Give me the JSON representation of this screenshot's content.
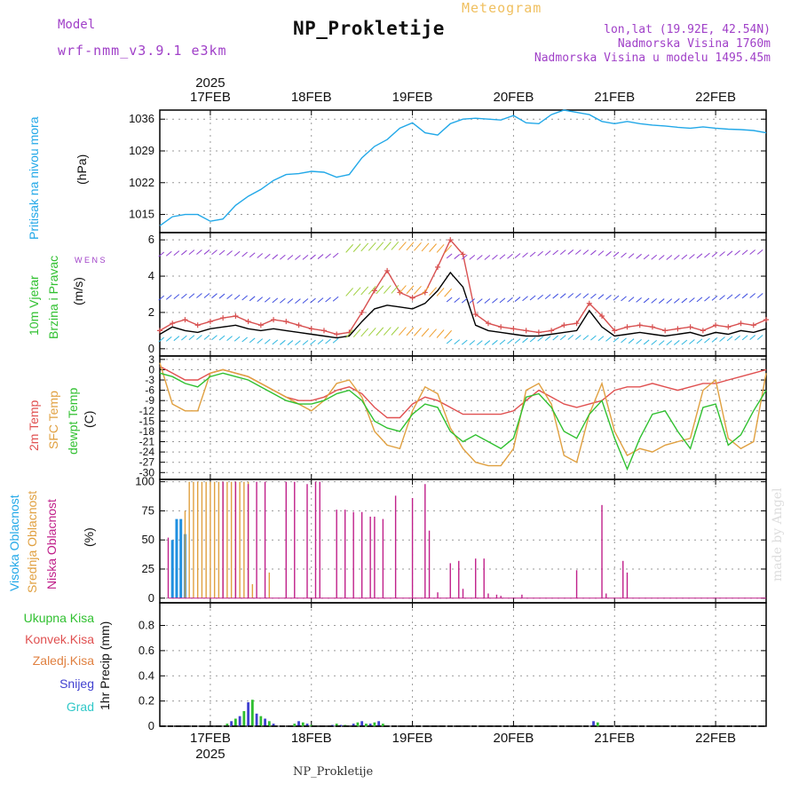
{
  "header": {
    "title": "NP_Prokletije",
    "subtitle": "Meteogram",
    "model_label": "Model",
    "model_value": "wrf-nmm_v3.9.1  e3km",
    "location_line1": "lon,lat (19.92E, 42.54N)",
    "location_line2": "Nadmorska Visina 1760m",
    "location_line3": "Nadmorska Visina u modelu 1495.45m",
    "footer": "NP_Prokletije",
    "credit": "made by Angel"
  },
  "colors": {
    "pressure": "#22a8e8",
    "wind_obs": "#d85050",
    "wind_black": "#000000",
    "temp_2m": "#e05050",
    "temp_sfc": "#e0a040",
    "temp_dew": "#30c030",
    "cloud_high": "#2090e0",
    "cloud_mid": "#e0a040",
    "cloud_low": "#c0208a",
    "precip_total": "#30c030",
    "precip_snow": "#4040d0"
  },
  "chart_data": {
    "type": "line",
    "time_axis": {
      "year": "2025",
      "days": [
        "17FEB",
        "18FEB",
        "19FEB",
        "20FEB",
        "21FEB",
        "22FEB"
      ],
      "hours_start": 0,
      "hours_end": 144
    },
    "panels": [
      {
        "id": "pressure",
        "labels": [
          "Pritisak na nivou mora"
        ],
        "unit": "(hPa)",
        "yticks": [
          "1015",
          "1022",
          "1029",
          "1036"
        ],
        "ylim": [
          1011,
          1038
        ],
        "series": [
          {
            "name": "Pressure",
            "x": [
              0,
              3,
              6,
              9,
              12,
              15,
              18,
              21,
              24,
              27,
              30,
              33,
              36,
              39,
              42,
              45,
              48,
              51,
              54,
              57,
              60,
              63,
              66,
              69,
              72,
              75,
              78,
              81,
              84,
              87,
              90,
              93,
              96,
              99,
              102,
              105,
              108,
              111,
              114,
              117,
              120,
              123,
              126,
              129,
              132,
              135,
              138,
              141,
              144
            ],
            "y": [
              1012.5,
              1014.5,
              1015,
              1015,
              1013.5,
              1014,
              1017,
              1019,
              1020.5,
              1022.5,
              1023.8,
              1024,
              1024.5,
              1024.3,
              1023.2,
              1023.8,
              1027.5,
              1030,
              1031.5,
              1034,
              1035.2,
              1033,
              1032.5,
              1035,
              1036,
              1036.2,
              1036,
              1035.8,
              1036.8,
              1035.2,
              1035,
              1037,
              1038,
              1037.5,
              1037,
              1035.5,
              1035,
              1035.5,
              1035,
              1034.7,
              1034.5,
              1034.2,
              1034,
              1034.3,
              1034,
              1033.8,
              1033.7,
              1033.5,
              1033
            ]
          }
        ]
      },
      {
        "id": "wind",
        "labels": [
          "10m Vjetar",
          "Brzina i Pravac"
        ],
        "unit": "(m/s)",
        "compass": "W E N S",
        "yticks": [
          "0",
          "2",
          "4",
          "6"
        ],
        "ylim": [
          -0.4,
          6.4
        ],
        "series": [
          {
            "name": "Speed (red, markers)",
            "x": [
              0,
              3,
              6,
              9,
              12,
              15,
              18,
              21,
              24,
              27,
              30,
              33,
              36,
              39,
              42,
              45,
              48,
              51,
              54,
              57,
              60,
              63,
              66,
              69,
              72,
              75,
              78,
              81,
              84,
              87,
              90,
              93,
              96,
              99,
              102,
              105,
              108,
              111,
              114,
              117,
              120,
              123,
              126,
              129,
              132,
              135,
              138,
              141,
              144
            ],
            "y": [
              1.0,
              1.4,
              1.6,
              1.3,
              1.5,
              1.7,
              1.8,
              1.5,
              1.3,
              1.6,
              1.5,
              1.3,
              1.1,
              1.0,
              0.8,
              0.9,
              2.0,
              3.2,
              4.3,
              3.1,
              2.8,
              3.1,
              4.5,
              6.0,
              5.2,
              1.9,
              1.4,
              1.2,
              1.1,
              1.0,
              0.9,
              1.0,
              1.3,
              1.4,
              2.5,
              1.8,
              1.0,
              1.2,
              1.3,
              1.2,
              1.0,
              1.1,
              1.2,
              1.0,
              1.3,
              1.2,
              1.4,
              1.3,
              1.6
            ]
          },
          {
            "name": "Speed (black)",
            "x": [
              0,
              3,
              6,
              9,
              12,
              15,
              18,
              21,
              24,
              27,
              30,
              33,
              36,
              39,
              42,
              45,
              48,
              51,
              54,
              57,
              60,
              63,
              66,
              69,
              72,
              75,
              78,
              81,
              84,
              87,
              90,
              93,
              96,
              99,
              102,
              105,
              108,
              111,
              114,
              117,
              120,
              123,
              126,
              129,
              132,
              135,
              138,
              141,
              144
            ],
            "y": [
              0.8,
              1.2,
              1.0,
              0.9,
              1.1,
              1.2,
              1.3,
              1.1,
              1.0,
              1.1,
              1.0,
              0.9,
              0.8,
              0.7,
              0.6,
              0.7,
              1.5,
              2.2,
              2.4,
              2.3,
              2.2,
              2.5,
              3.2,
              4.2,
              3.4,
              1.3,
              1.0,
              0.9,
              0.8,
              0.7,
              0.7,
              0.8,
              0.9,
              1.0,
              2.1,
              1.2,
              0.7,
              0.8,
              0.9,
              0.8,
              0.7,
              0.8,
              0.9,
              0.7,
              0.9,
              0.8,
              1.0,
              0.9,
              1.1
            ]
          }
        ]
      },
      {
        "id": "temperature",
        "labels": [
          "2m Temp",
          "SFC Temp",
          "dewpt Temp"
        ],
        "unit": "(C)",
        "yticks": [
          "3",
          "0",
          "-3",
          "-6",
          "-9",
          "-12",
          "-15",
          "-18",
          "-21",
          "-24",
          "-27",
          "-30"
        ],
        "ylim": [
          -32,
          4
        ],
        "series": [
          {
            "name": "2m Temp",
            "x": [
              0,
              3,
              6,
              9,
              12,
              15,
              18,
              21,
              24,
              27,
              30,
              33,
              36,
              39,
              42,
              45,
              48,
              51,
              54,
              57,
              60,
              63,
              66,
              69,
              72,
              75,
              78,
              81,
              84,
              87,
              90,
              93,
              96,
              99,
              102,
              105,
              108,
              111,
              114,
              117,
              120,
              123,
              126,
              129,
              132,
              135,
              138,
              141,
              144
            ],
            "y": [
              1,
              -1,
              -3,
              -3,
              -1,
              0,
              -1,
              -2,
              -4,
              -6,
              -8,
              -9,
              -9,
              -8,
              -6,
              -5,
              -7,
              -11,
              -14,
              -14,
              -10,
              -8,
              -9,
              -11,
              -13,
              -13,
              -13,
              -13,
              -12,
              -9,
              -6,
              -8,
              -10,
              -11,
              -10,
              -9,
              -6,
              -5,
              -5,
              -4,
              -5,
              -6,
              -5,
              -4,
              -4,
              -3,
              -2,
              -1,
              0
            ]
          },
          {
            "name": "SFC Temp",
            "x": [
              0,
              3,
              6,
              9,
              12,
              15,
              18,
              21,
              24,
              27,
              30,
              33,
              36,
              39,
              42,
              45,
              48,
              51,
              54,
              57,
              60,
              63,
              66,
              69,
              72,
              75,
              78,
              81,
              84,
              87,
              90,
              93,
              96,
              99,
              102,
              105,
              108,
              111,
              114,
              117,
              120,
              123,
              126,
              129,
              132,
              135,
              138,
              141,
              144
            ],
            "y": [
              2,
              -10,
              -12,
              -12,
              -1,
              0,
              -1,
              -2,
              -4,
              -6,
              -8,
              -10,
              -12,
              -9,
              -4,
              -3,
              -8,
              -18,
              -22,
              -23,
              -12,
              -5,
              -7,
              -17,
              -23,
              -27,
              -28,
              -28,
              -23,
              -6,
              -4,
              -10,
              -25,
              -27,
              -13,
              -4,
              -18,
              -25,
              -23,
              -24,
              -22,
              -21,
              -20,
              -6,
              -3,
              -20,
              -23,
              -21,
              -1
            ]
          },
          {
            "name": "dewpt Temp",
            "x": [
              0,
              3,
              6,
              9,
              12,
              15,
              18,
              21,
              24,
              27,
              30,
              33,
              36,
              39,
              42,
              45,
              48,
              51,
              54,
              57,
              60,
              63,
              66,
              69,
              72,
              75,
              78,
              81,
              84,
              87,
              90,
              93,
              96,
              99,
              102,
              105,
              108,
              111,
              114,
              117,
              120,
              123,
              126,
              129,
              132,
              135,
              138,
              141,
              144
            ],
            "y": [
              -1,
              -2,
              -4,
              -5,
              -2,
              -1,
              -2,
              -3,
              -5,
              -7,
              -9,
              -10,
              -10,
              -9,
              -7,
              -6,
              -9,
              -15,
              -17,
              -18,
              -13,
              -10,
              -11,
              -18,
              -21,
              -19,
              -21,
              -23,
              -20,
              -8,
              -7,
              -11,
              -18,
              -20,
              -13,
              -9,
              -20,
              -29,
              -20,
              -13,
              -12,
              -18,
              -23,
              -11,
              -10,
              -22,
              -19,
              -12,
              -6
            ]
          }
        ]
      },
      {
        "id": "clouds",
        "labels": [
          "Visoka Oblacnost",
          "Srednja Oblacnost",
          "Niska Oblacnost"
        ],
        "unit": "(%)",
        "yticks": [
          "0",
          "25",
          "50",
          "75",
          "100"
        ],
        "ylim": [
          -4,
          102
        ],
        "series": [
          {
            "name": "Visoka (high)",
            "x": [
              3,
              4,
              5,
              6
            ],
            "y": [
              50,
              68,
              68,
              55
            ]
          },
          {
            "name": "Srednja (mid)",
            "x": [
              6,
              7,
              8,
              9,
              10,
              11,
              12,
              13,
              14,
              15,
              16,
              17,
              18,
              19,
              20,
              21,
              22,
              26
            ],
            "y": [
              75,
              100,
              100,
              100,
              100,
              100,
              100,
              100,
              100,
              100,
              100,
              100,
              100,
              100,
              100,
              100,
              12,
              22
            ]
          },
          {
            "name": "Niska (low)",
            "x": [
              2,
              15,
              18,
              21,
              23,
              25,
              30,
              32,
              35,
              37,
              38,
              42,
              44,
              46,
              48,
              50,
              51,
              53,
              56,
              60,
              63,
              64,
              66,
              69,
              71,
              72,
              75,
              77,
              78,
              80,
              81,
              86,
              99,
              105,
              106,
              110,
              111
            ],
            "y": [
              52,
              100,
              100,
              98,
              100,
              100,
              100,
              100,
              98,
              100,
              100,
              76,
              76,
              74,
              74,
              70,
              70,
              68,
              88,
              86,
              98,
              58,
              5,
              30,
              32,
              8,
              34,
              34,
              4,
              3,
              2,
              3,
              24,
              80,
              4,
              32,
              22
            ]
          }
        ]
      },
      {
        "id": "precip",
        "labels": [
          "Ukupna Kisa",
          "Konvek.Kisa",
          "Zaledj.Kisa",
          "Snijeg",
          "Grad"
        ],
        "label_colors": [
          "#30c030",
          "#e05050",
          "#e08040",
          "#4040d0",
          "#30c8c8"
        ],
        "unit": "1hr Precip (mm)",
        "yticks": [
          "0",
          "0.2",
          "0.4",
          "0.6",
          "0.8"
        ],
        "ylim": [
          0,
          0.98
        ],
        "series": [
          {
            "name": "Ukupna Kisa",
            "x": [
              16,
              17,
              18,
              19,
              20,
              21,
              22,
              23,
              24,
              25,
              26,
              27,
              32,
              33,
              34,
              35,
              36,
              41,
              42,
              43,
              44,
              46,
              47,
              48,
              49,
              50,
              51,
              52,
              53,
              103,
              104
            ],
            "y": [
              0.02,
              0.04,
              0.06,
              0.08,
              0.12,
              0.19,
              0.21,
              0.1,
              0.08,
              0.06,
              0.04,
              0.02,
              0.02,
              0.04,
              0.03,
              0.02,
              0.01,
              0.01,
              0.02,
              0.01,
              0.01,
              0.02,
              0.03,
              0.04,
              0.02,
              0.02,
              0.03,
              0.04,
              0.02,
              0.04,
              0.03
            ]
          }
        ]
      }
    ]
  }
}
